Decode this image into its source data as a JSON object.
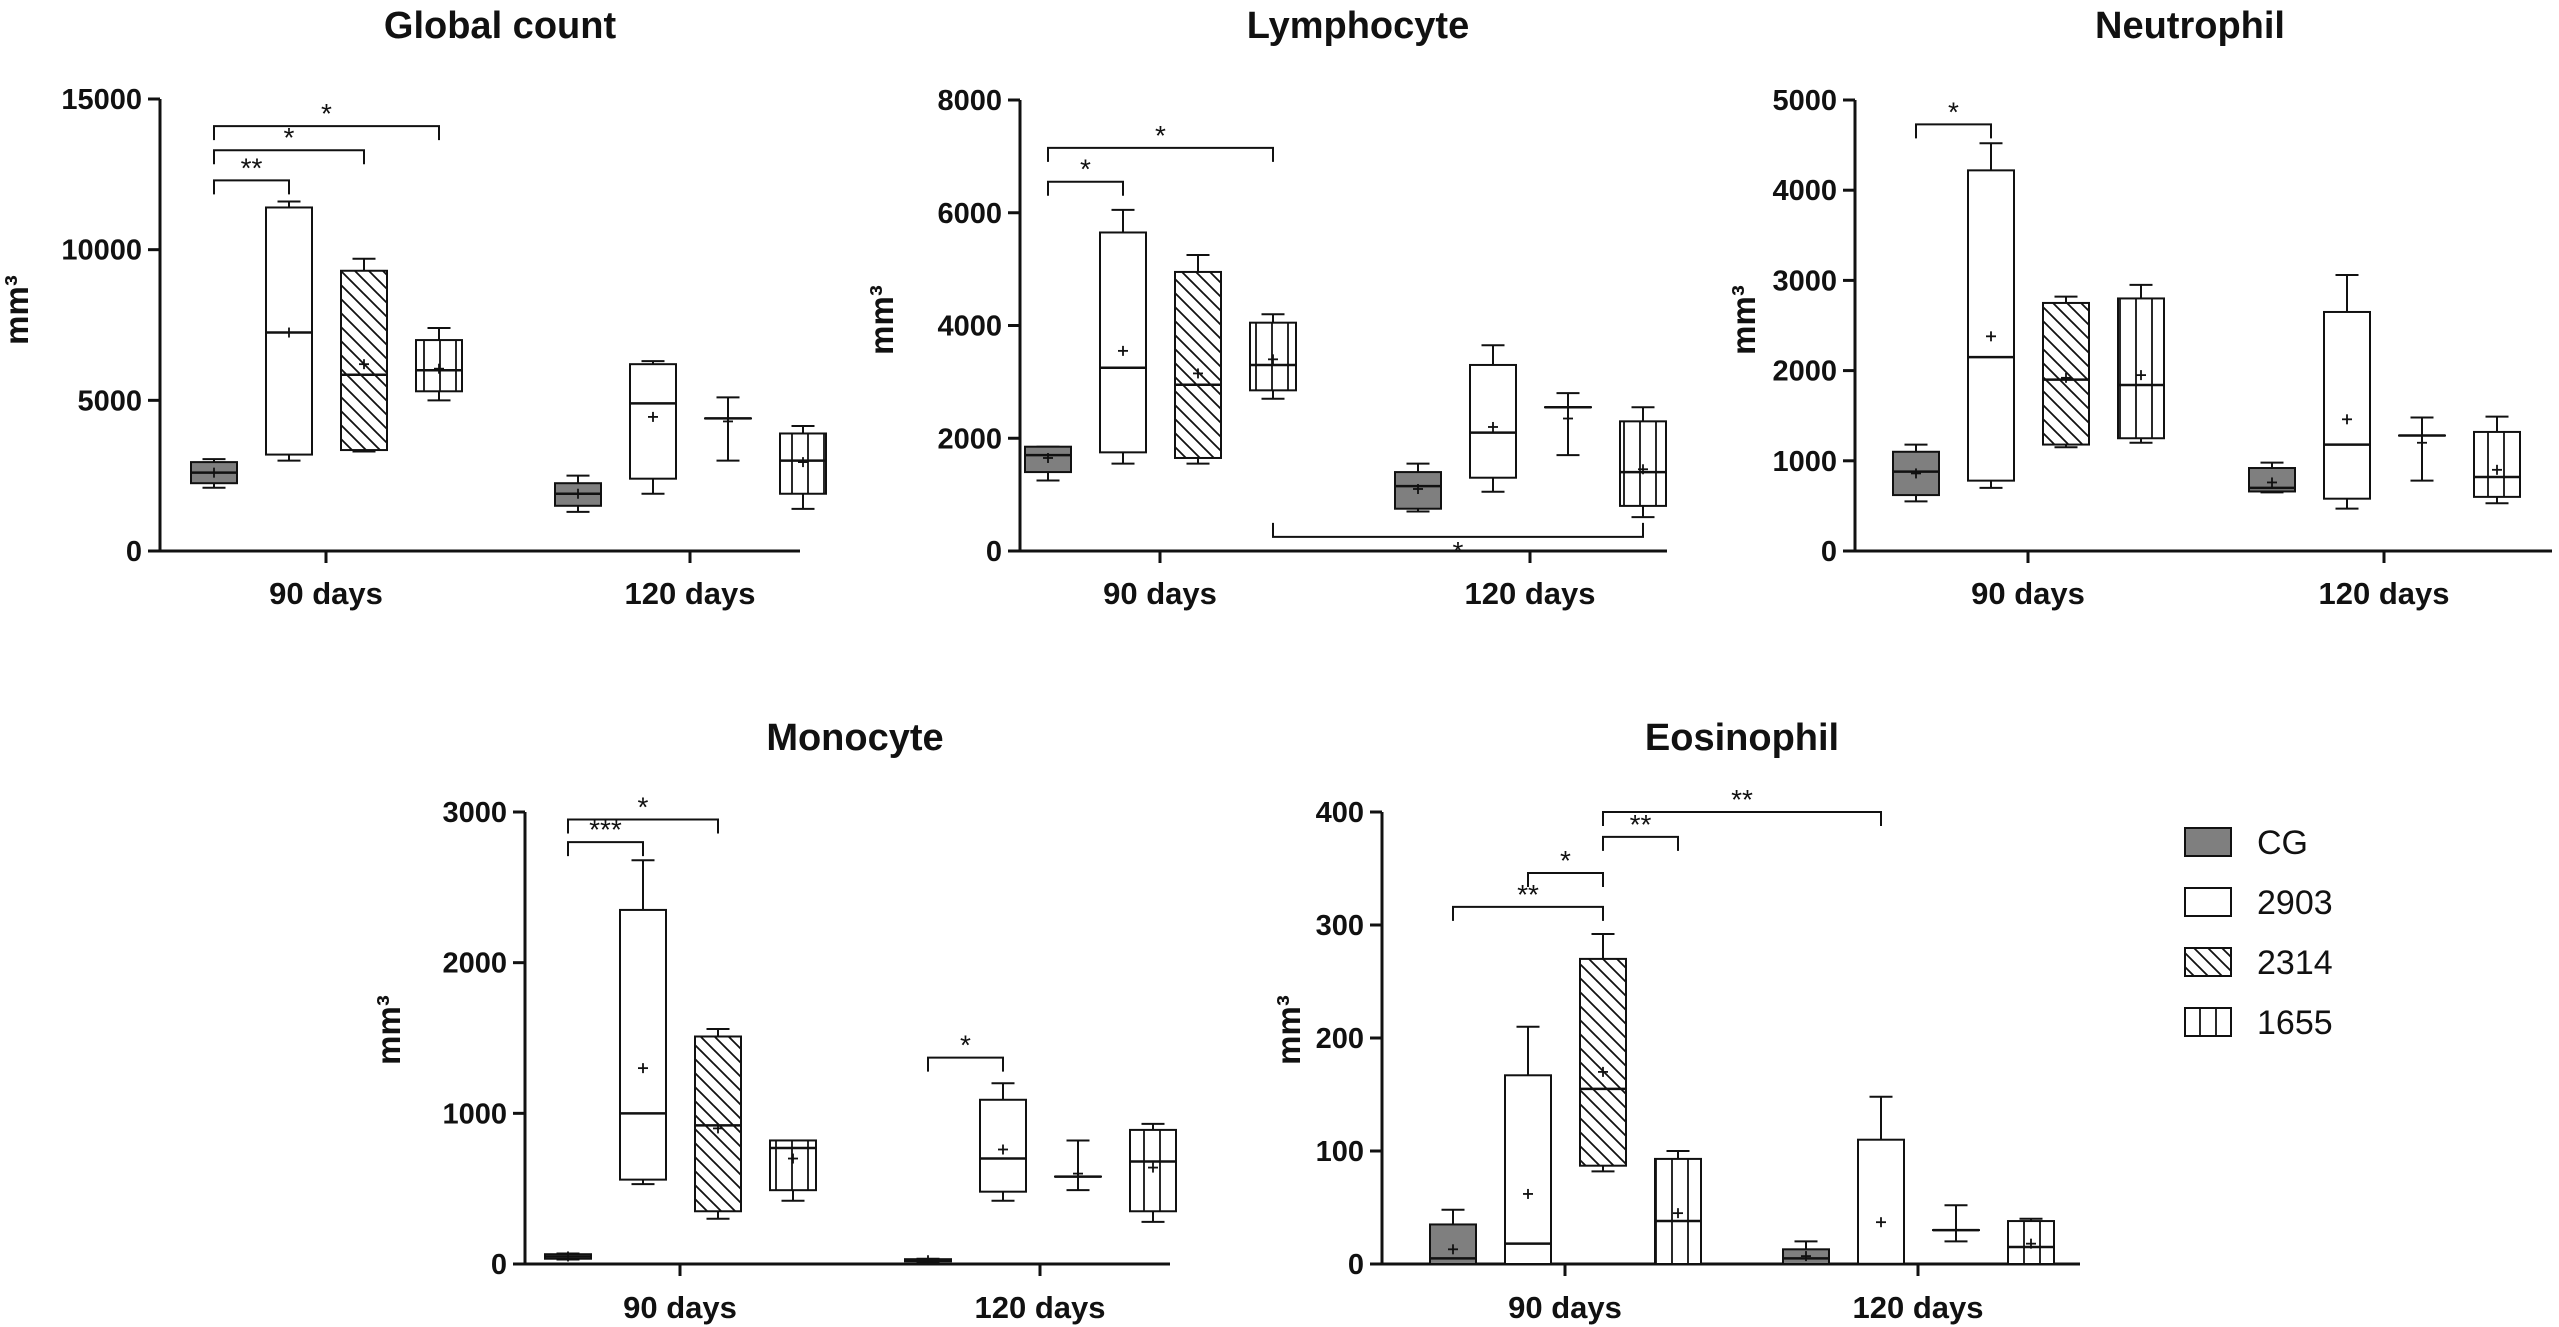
{
  "legend": [
    {
      "label": "CG",
      "pattern": "solid"
    },
    {
      "label": "2903",
      "pattern": "empty"
    },
    {
      "label": "2314",
      "pattern": "diag"
    },
    {
      "label": "1655",
      "pattern": "vert"
    }
  ],
  "colors": {
    "cg_fill": "#7f7f7f",
    "ink": "#111111",
    "background": "#ffffff"
  },
  "chart_data": [
    {
      "type": "box",
      "title": "Global count",
      "ylabel": "mm³",
      "categories": [
        "90 days",
        "120 days"
      ],
      "ylim": [
        0,
        15000
      ],
      "yticks": [
        0,
        5000,
        10000,
        15000
      ],
      "groups": [
        {
          "category": "90 days",
          "boxes": [
            {
              "series": "CG",
              "min": 2100,
              "q1": 2250,
              "median": 2600,
              "q3": 2950,
              "max": 3050,
              "mean": 2600
            },
            {
              "series": "2903",
              "min": 3000,
              "q1": 3200,
              "median": 7250,
              "q3": 11400,
              "max": 11600,
              "mean": 7250
            },
            {
              "series": "2314",
              "min": 3300,
              "q1": 3350,
              "median": 5850,
              "q3": 9300,
              "max": 9700,
              "mean": 6200
            },
            {
              "series": "1655",
              "min": 5000,
              "q1": 5300,
              "median": 6000,
              "q3": 7000,
              "max": 7400,
              "mean": 6050
            }
          ]
        },
        {
          "category": "120 days",
          "boxes": [
            {
              "series": "CG",
              "min": 1300,
              "q1": 1500,
              "median": 1900,
              "q3": 2250,
              "max": 2500,
              "mean": 1900
            },
            {
              "series": "2903",
              "min": 1900,
              "q1": 2400,
              "median": 4900,
              "q3": 6200,
              "max": 6300,
              "mean": 4450
            },
            {
              "series": "2314",
              "min": 3000,
              "q1": 4400,
              "median": 4400,
              "q3": 4400,
              "max": 5100,
              "mean": 4300
            },
            {
              "series": "1655",
              "min": 1400,
              "q1": 1900,
              "median": 3000,
              "q3": 3900,
              "max": 4150,
              "mean": 2950
            }
          ]
        }
      ],
      "significance": [
        {
          "from": "90 days/CG",
          "to": "90 days/2903",
          "label": "**",
          "y": 12300
        },
        {
          "from": "90 days/CG",
          "to": "90 days/2314",
          "label": "*",
          "y": 13300
        },
        {
          "from": "90 days/CG",
          "to": "90 days/1655",
          "label": "*",
          "y": 14100
        }
      ]
    },
    {
      "type": "box",
      "title": "Lymphocyte",
      "ylabel": "mm³",
      "categories": [
        "90 days",
        "120 days"
      ],
      "ylim": [
        0,
        8000
      ],
      "yticks": [
        0,
        2000,
        4000,
        6000,
        8000
      ],
      "groups": [
        {
          "category": "90 days",
          "boxes": [
            {
              "series": "CG",
              "min": 1250,
              "q1": 1400,
              "median": 1700,
              "q3": 1850,
              "max": 1850,
              "mean": 1650
            },
            {
              "series": "2903",
              "min": 1550,
              "q1": 1750,
              "median": 3250,
              "q3": 5650,
              "max": 6050,
              "mean": 3550
            },
            {
              "series": "2314",
              "min": 1550,
              "q1": 1650,
              "median": 2950,
              "q3": 4950,
              "max": 5250,
              "mean": 3150
            },
            {
              "series": "1655",
              "min": 2700,
              "q1": 2850,
              "median": 3300,
              "q3": 4050,
              "max": 4200,
              "mean": 3400
            }
          ]
        },
        {
          "category": "120 days",
          "boxes": [
            {
              "series": "CG",
              "min": 700,
              "q1": 750,
              "median": 1150,
              "q3": 1400,
              "max": 1550,
              "mean": 1100
            },
            {
              "series": "2903",
              "min": 1050,
              "q1": 1300,
              "median": 2100,
              "q3": 3300,
              "max": 3650,
              "mean": 2200
            },
            {
              "series": "2314",
              "min": 1700,
              "q1": 2550,
              "median": 2550,
              "q3": 2550,
              "max": 2800,
              "mean": 2350
            },
            {
              "series": "1655",
              "min": 600,
              "q1": 800,
              "median": 1400,
              "q3": 2300,
              "max": 2550,
              "mean": 1450
            }
          ]
        }
      ],
      "significance": [
        {
          "from": "90 days/CG",
          "to": "90 days/2903",
          "label": "*",
          "y": 6550
        },
        {
          "from": "90 days/CG",
          "to": "90 days/1655",
          "label": "*",
          "y": 7150
        },
        {
          "from": "90 days/1655",
          "to": "120 days/1655",
          "label": "*",
          "y": 250,
          "below": true
        }
      ]
    },
    {
      "type": "box",
      "title": "Neutrophil",
      "ylabel": "mm³",
      "categories": [
        "90 days",
        "120 days"
      ],
      "ylim": [
        0,
        5000
      ],
      "yticks": [
        0,
        1000,
        2000,
        3000,
        4000,
        5000
      ],
      "groups": [
        {
          "category": "90 days",
          "boxes": [
            {
              "series": "CG",
              "min": 550,
              "q1": 620,
              "median": 880,
              "q3": 1100,
              "max": 1180,
              "mean": 860
            },
            {
              "series": "2903",
              "min": 700,
              "q1": 780,
              "median": 2150,
              "q3": 4220,
              "max": 4520,
              "mean": 2380
            },
            {
              "series": "2314",
              "min": 1150,
              "q1": 1180,
              "median": 1900,
              "q3": 2750,
              "max": 2820,
              "mean": 1920
            },
            {
              "series": "1655",
              "min": 1200,
              "q1": 1250,
              "median": 1840,
              "q3": 2800,
              "max": 2950,
              "mean": 1950
            }
          ]
        },
        {
          "category": "120 days",
          "boxes": [
            {
              "series": "CG",
              "min": 650,
              "q1": 660,
              "median": 700,
              "q3": 920,
              "max": 980,
              "mean": 760
            },
            {
              "series": "2903",
              "min": 470,
              "q1": 580,
              "median": 1180,
              "q3": 2650,
              "max": 3060,
              "mean": 1460
            },
            {
              "series": "2314",
              "min": 780,
              "q1": 1280,
              "median": 1280,
              "q3": 1280,
              "max": 1480,
              "mean": 1200
            },
            {
              "series": "1655",
              "min": 530,
              "q1": 600,
              "median": 820,
              "q3": 1320,
              "max": 1490,
              "mean": 900
            }
          ]
        }
      ],
      "significance": [
        {
          "from": "90 days/CG",
          "to": "90 days/2903",
          "label": "*",
          "y": 4730
        }
      ]
    },
    {
      "type": "box",
      "title": "Monocyte",
      "ylabel": "mm³",
      "categories": [
        "90 days",
        "120 days"
      ],
      "ylim": [
        0,
        3000
      ],
      "yticks": [
        0,
        1000,
        2000,
        3000
      ],
      "groups": [
        {
          "category": "90 days",
          "boxes": [
            {
              "series": "CG",
              "min": 30,
              "q1": 35,
              "median": 50,
              "q3": 65,
              "max": 70,
              "mean": 50
            },
            {
              "series": "2903",
              "min": 530,
              "q1": 560,
              "median": 1000,
              "q3": 2350,
              "max": 2680,
              "mean": 1300
            },
            {
              "series": "2314",
              "min": 300,
              "q1": 350,
              "median": 920,
              "q3": 1510,
              "max": 1560,
              "mean": 900
            },
            {
              "series": "1655",
              "min": 420,
              "q1": 490,
              "median": 770,
              "q3": 820,
              "max": 820,
              "mean": 700
            }
          ]
        },
        {
          "category": "120 days",
          "boxes": [
            {
              "series": "CG",
              "min": 15,
              "q1": 18,
              "median": 25,
              "q3": 32,
              "max": 35,
              "mean": 25
            },
            {
              "series": "2903",
              "min": 420,
              "q1": 480,
              "median": 700,
              "q3": 1090,
              "max": 1200,
              "mean": 760
            },
            {
              "series": "2314",
              "min": 490,
              "q1": 580,
              "median": 580,
              "q3": 580,
              "max": 820,
              "mean": 600
            },
            {
              "series": "1655",
              "min": 280,
              "q1": 350,
              "median": 680,
              "q3": 890,
              "max": 930,
              "mean": 640
            }
          ]
        }
      ],
      "significance": [
        {
          "from": "90 days/CG",
          "to": "90 days/2903",
          "label": "***",
          "y": 2800
        },
        {
          "from": "90 days/CG",
          "to": "90 days/2314",
          "label": "*",
          "y": 2950
        },
        {
          "from": "120 days/CG",
          "to": "120 days/2903",
          "label": "*",
          "y": 1370
        }
      ]
    },
    {
      "type": "box",
      "title": "Eosinophil",
      "ylabel": "mm³",
      "categories": [
        "90 days",
        "120 days"
      ],
      "ylim": [
        0,
        400
      ],
      "yticks": [
        0,
        100,
        200,
        300,
        400
      ],
      "groups": [
        {
          "category": "90 days",
          "boxes": [
            {
              "series": "CG",
              "min": 0,
              "q1": 0,
              "median": 5,
              "q3": 35,
              "max": 48,
              "mean": 13
            },
            {
              "series": "2903",
              "min": 0,
              "q1": 0,
              "median": 18,
              "q3": 167,
              "max": 210,
              "mean": 62
            },
            {
              "series": "2314",
              "min": 82,
              "q1": 87,
              "median": 155,
              "q3": 270,
              "max": 292,
              "mean": 170
            },
            {
              "series": "1655",
              "min": 0,
              "q1": 0,
              "median": 38,
              "q3": 93,
              "max": 100,
              "mean": 45
            }
          ]
        },
        {
          "category": "120 days",
          "boxes": [
            {
              "series": "CG",
              "min": 0,
              "q1": 0,
              "median": 5,
              "q3": 13,
              "max": 20,
              "mean": 7
            },
            {
              "series": "2903",
              "min": 0,
              "q1": 0,
              "median": 0,
              "q3": 110,
              "max": 148,
              "mean": 37
            },
            {
              "series": "2314",
              "min": 20,
              "q1": 30,
              "median": 30,
              "q3": 30,
              "max": 52,
              "mean": 30
            },
            {
              "series": "1655",
              "min": 0,
              "q1": 0,
              "median": 15,
              "q3": 38,
              "max": 40,
              "mean": 18
            }
          ]
        }
      ],
      "significance": [
        {
          "from": "90 days/CG",
          "to": "90 days/2314",
          "label": "**",
          "y": 316
        },
        {
          "from": "90 days/2903",
          "to": "90 days/2314",
          "label": "*",
          "y": 346
        },
        {
          "from": "90 days/2314",
          "to": "90 days/1655",
          "label": "**",
          "y": 378
        },
        {
          "from": "90 days/2314",
          "to": "120 days/2903",
          "label": "**",
          "y": 400
        }
      ]
    }
  ]
}
